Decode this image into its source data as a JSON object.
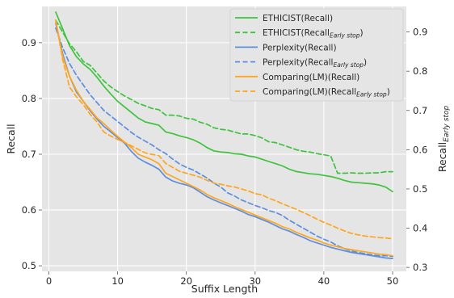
{
  "chart_data": {
    "type": "line",
    "xlabel": "Suffix Length",
    "ylabel_left": "Recall",
    "ylabel_right": {
      "main": "Recall",
      "sub": "Early stop"
    },
    "xlim": [
      -1,
      52
    ],
    "ylim_left": [
      0.49,
      0.965
    ],
    "ylim_right": [
      0.29,
      0.965
    ],
    "x_ticks": [
      0,
      10,
      20,
      30,
      40,
      50
    ],
    "y_left_ticks": [
      0.5,
      0.6,
      0.7,
      0.8,
      0.9
    ],
    "y_right_ticks": [
      0.3,
      0.4,
      0.5,
      0.6,
      0.7,
      0.8,
      0.9
    ],
    "grid": true,
    "legend_position": "top-right",
    "x": [
      1,
      2,
      3,
      4,
      5,
      6,
      7,
      8,
      9,
      10,
      11,
      12,
      13,
      14,
      15,
      16,
      17,
      18,
      19,
      20,
      21,
      22,
      23,
      24,
      25,
      26,
      27,
      28,
      29,
      30,
      31,
      32,
      33,
      34,
      35,
      36,
      37,
      38,
      39,
      40,
      41,
      42,
      43,
      44,
      45,
      46,
      47,
      48,
      49,
      50
    ],
    "series": [
      {
        "name": "ETHICIST(Recall)",
        "color": "#3ec33e",
        "dash": false,
        "axis": "left",
        "values": [
          0.955,
          0.925,
          0.895,
          0.875,
          0.862,
          0.852,
          0.838,
          0.822,
          0.808,
          0.795,
          0.785,
          0.775,
          0.765,
          0.758,
          0.755,
          0.752,
          0.74,
          0.737,
          0.733,
          0.73,
          0.726,
          0.72,
          0.712,
          0.706,
          0.704,
          0.703,
          0.701,
          0.7,
          0.697,
          0.695,
          0.691,
          0.687,
          0.683,
          0.679,
          0.673,
          0.669,
          0.667,
          0.665,
          0.664,
          0.662,
          0.66,
          0.657,
          0.653,
          0.65,
          0.649,
          0.648,
          0.647,
          0.645,
          0.641,
          0.633
        ]
      },
      {
        "name": "ETHICIST(Recall)",
        "name_sub": "Early stop",
        "color": "#3ec33e",
        "dash": true,
        "axis": "right",
        "values": [
          0.93,
          0.9,
          0.87,
          0.85,
          0.825,
          0.815,
          0.795,
          0.775,
          0.76,
          0.748,
          0.737,
          0.728,
          0.718,
          0.712,
          0.705,
          0.702,
          0.688,
          0.688,
          0.686,
          0.68,
          0.678,
          0.67,
          0.665,
          0.656,
          0.652,
          0.65,
          0.645,
          0.64,
          0.64,
          0.636,
          0.63,
          0.62,
          0.618,
          0.612,
          0.606,
          0.6,
          0.596,
          0.594,
          0.59,
          0.587,
          0.584,
          0.54,
          0.54,
          0.541,
          0.54,
          0.54,
          0.541,
          0.541,
          0.544,
          0.544
        ]
      },
      {
        "name": "Perplexity(Recall)",
        "color": "#5b8fde",
        "dash": false,
        "axis": "left",
        "values": [
          0.935,
          0.88,
          0.84,
          0.812,
          0.795,
          0.778,
          0.763,
          0.75,
          0.74,
          0.73,
          0.72,
          0.705,
          0.693,
          0.686,
          0.68,
          0.673,
          0.659,
          0.652,
          0.648,
          0.645,
          0.64,
          0.632,
          0.624,
          0.618,
          0.613,
          0.608,
          0.603,
          0.598,
          0.592,
          0.588,
          0.583,
          0.578,
          0.572,
          0.566,
          0.562,
          0.556,
          0.551,
          0.545,
          0.541,
          0.537,
          0.533,
          0.53,
          0.527,
          0.524,
          0.522,
          0.52,
          0.518,
          0.516,
          0.514,
          0.513
        ]
      },
      {
        "name": "Perplexity(Recall)",
        "name_sub": "Early stop",
        "color": "#5b8fde",
        "dash": true,
        "axis": "right",
        "values": [
          0.91,
          0.86,
          0.82,
          0.79,
          0.765,
          0.74,
          0.72,
          0.7,
          0.686,
          0.672,
          0.658,
          0.644,
          0.632,
          0.622,
          0.612,
          0.6,
          0.59,
          0.576,
          0.564,
          0.555,
          0.548,
          0.538,
          0.528,
          0.515,
          0.505,
          0.49,
          0.482,
          0.472,
          0.465,
          0.458,
          0.452,
          0.445,
          0.44,
          0.432,
          0.42,
          0.41,
          0.4,
          0.39,
          0.38,
          0.372,
          0.365,
          0.355,
          0.348,
          0.342,
          0.338,
          0.335,
          0.332,
          0.33,
          0.33,
          0.328
        ]
      },
      {
        "name": "Comparing(LM)(Recall)",
        "color": "#ffa51e",
        "dash": false,
        "axis": "left",
        "values": [
          0.94,
          0.875,
          0.84,
          0.815,
          0.795,
          0.78,
          0.765,
          0.755,
          0.743,
          0.732,
          0.722,
          0.712,
          0.7,
          0.695,
          0.69,
          0.683,
          0.666,
          0.66,
          0.654,
          0.648,
          0.642,
          0.636,
          0.628,
          0.622,
          0.617,
          0.612,
          0.606,
          0.601,
          0.596,
          0.591,
          0.586,
          0.581,
          0.576,
          0.57,
          0.566,
          0.56,
          0.555,
          0.55,
          0.546,
          0.541,
          0.537,
          0.534,
          0.531,
          0.529,
          0.527,
          0.525,
          0.523,
          0.521,
          0.52,
          0.518
        ]
      },
      {
        "name": "Comparing(LM)(Recall)",
        "name_sub": "Early stop",
        "color": "#ffa51e",
        "dash": true,
        "axis": "right",
        "values": [
          0.93,
          0.83,
          0.76,
          0.735,
          0.715,
          0.69,
          0.67,
          0.645,
          0.635,
          0.626,
          0.619,
          0.61,
          0.601,
          0.592,
          0.588,
          0.585,
          0.565,
          0.555,
          0.545,
          0.54,
          0.535,
          0.53,
          0.522,
          0.515,
          0.512,
          0.508,
          0.505,
          0.5,
          0.495,
          0.488,
          0.485,
          0.476,
          0.47,
          0.462,
          0.455,
          0.448,
          0.44,
          0.432,
          0.423,
          0.415,
          0.408,
          0.4,
          0.393,
          0.387,
          0.383,
          0.38,
          0.378,
          0.376,
          0.375,
          0.373
        ]
      }
    ]
  }
}
